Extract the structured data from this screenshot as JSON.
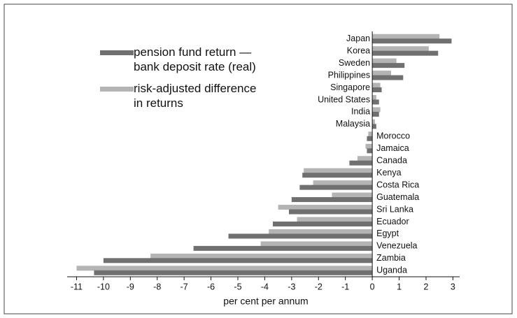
{
  "chart_data": {
    "type": "barh",
    "x_label": "per cent per annum",
    "categories": [
      "Japan",
      "Korea",
      "Sweden",
      "Philippines",
      "Singapore",
      "United States",
      "India",
      "Malaysia",
      "Morocco",
      "Jamaica",
      "Canada",
      "Kenya",
      "Costa Rica",
      "Guatemala",
      "Sri Lanka",
      "Ecuador",
      "Egypt",
      "Venezuela",
      "Zambia",
      "Uganda"
    ],
    "series": [
      {
        "name": "pension fund return — bank deposit rate (real)",
        "color": "#707070",
        "values": [
          2.95,
          2.45,
          1.2,
          1.15,
          0.35,
          0.25,
          0.25,
          0.15,
          -0.2,
          -0.2,
          -0.85,
          -2.6,
          -2.7,
          -3.0,
          -3.1,
          -3.7,
          -5.35,
          -6.65,
          -10.0,
          -10.35
        ]
      },
      {
        "name": "risk-adjusted difference in returns",
        "color": "#b4b4b4",
        "values": [
          2.5,
          2.1,
          0.9,
          0.7,
          0.3,
          0.15,
          0.3,
          0.1,
          -0.15,
          -0.25,
          -0.55,
          -2.55,
          -2.2,
          -1.5,
          -3.5,
          -2.8,
          -3.85,
          -4.15,
          -8.25,
          -11.0
        ]
      }
    ],
    "xlim": [
      -11.35,
      3.25
    ],
    "xticks": [
      -11,
      -10,
      -9,
      -8,
      -7,
      -6,
      -5,
      -4,
      -3,
      -2,
      -1,
      0,
      1,
      2,
      3
    ]
  }
}
